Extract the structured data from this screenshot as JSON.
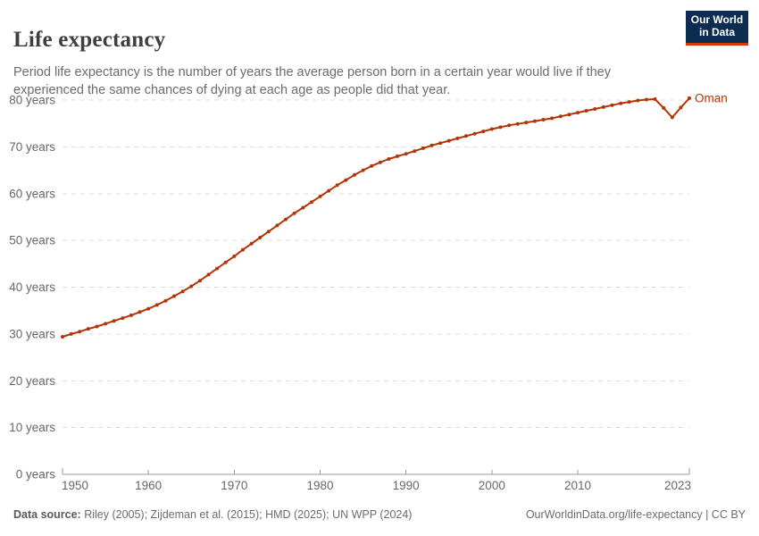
{
  "header": {
    "title": "Life expectancy",
    "subtitle": "Period life expectancy is the number of years the average person born in a certain year would live if they experienced the same chances of dying at each age as people did that year.",
    "logo": {
      "line1": "Our World",
      "line2": "in Data",
      "bg_color": "#0d2c51",
      "accent_color": "#dc350f"
    }
  },
  "chart_data": {
    "type": "line",
    "title": "Life expectancy",
    "xlabel": "",
    "ylabel": "",
    "grid": "horizontal-dashed",
    "xlim": [
      1950,
      2023
    ],
    "ylim": [
      0,
      80
    ],
    "x_ticks": [
      1950,
      1960,
      1970,
      1980,
      1990,
      2000,
      2010,
      2023
    ],
    "y_ticks": [
      0,
      10,
      20,
      30,
      40,
      50,
      60,
      70,
      80
    ],
    "y_tick_suffix": " years",
    "axis_color": "#9a9a9a",
    "grid_color": "#dcdcdc",
    "tick_label_color": "#666666",
    "series": [
      {
        "name": "Oman",
        "color": "#b13507",
        "x": [
          1950,
          1951,
          1952,
          1953,
          1954,
          1955,
          1956,
          1957,
          1958,
          1959,
          1960,
          1961,
          1962,
          1963,
          1964,
          1965,
          1966,
          1967,
          1968,
          1969,
          1970,
          1971,
          1972,
          1973,
          1974,
          1975,
          1976,
          1977,
          1978,
          1979,
          1980,
          1981,
          1982,
          1983,
          1984,
          1985,
          1986,
          1987,
          1988,
          1989,
          1990,
          1991,
          1992,
          1993,
          1994,
          1995,
          1996,
          1997,
          1998,
          1999,
          2000,
          2001,
          2002,
          2003,
          2004,
          2005,
          2006,
          2007,
          2008,
          2009,
          2010,
          2011,
          2012,
          2013,
          2014,
          2015,
          2016,
          2017,
          2018,
          2019,
          2020,
          2021,
          2022,
          2023
        ],
        "values": [
          29.4,
          30.0,
          30.5,
          31.1,
          31.6,
          32.2,
          32.8,
          33.4,
          34.0,
          34.7,
          35.4,
          36.2,
          37.1,
          38.1,
          39.1,
          40.2,
          41.4,
          42.7,
          44.0,
          45.3,
          46.6,
          48.0,
          49.3,
          50.6,
          51.9,
          53.2,
          54.5,
          55.8,
          57.0,
          58.2,
          59.4,
          60.6,
          61.8,
          62.9,
          64.0,
          65.0,
          65.9,
          66.7,
          67.4,
          68.0,
          68.5,
          69.1,
          69.7,
          70.3,
          70.8,
          71.3,
          71.8,
          72.3,
          72.8,
          73.3,
          73.8,
          74.2,
          74.6,
          74.9,
          75.2,
          75.5,
          75.8,
          76.1,
          76.5,
          76.9,
          77.3,
          77.7,
          78.1,
          78.5,
          78.9,
          79.3,
          79.6,
          79.9,
          80.1,
          80.2,
          78.3,
          76.3,
          78.4,
          80.4
        ]
      }
    ]
  },
  "footer": {
    "source_label": "Data source:",
    "source_text": " Riley (2005); Zijdeman et al. (2015); HMD (2025); UN WPP (2024)",
    "link_text": "OurWorldinData.org/life-expectancy | CC BY"
  }
}
